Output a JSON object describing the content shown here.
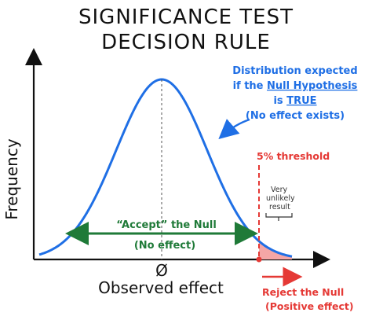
{
  "title": {
    "line1": "SIGNIFICANCE TEST",
    "line2": "DECISION RULE"
  },
  "axes": {
    "y_label": "Frequency",
    "x_label": "Observed effect",
    "x_origin_label": "Ø"
  },
  "callout": {
    "line1": "Distribution expected",
    "line2_prefix": "if the ",
    "line2_emph": "Null Hypothesis",
    "line3_prefix": "is ",
    "line3_emph": "TRUE",
    "line4": "(No effect exists)"
  },
  "accept_region": {
    "label_quote": "“Accept”",
    "label_rest": " the Null",
    "sub": "(No effect)"
  },
  "threshold": {
    "label": "5% threshold"
  },
  "tail_note": {
    "line1": "Very",
    "line2": "unlikely",
    "line3": "result"
  },
  "reject_region": {
    "line1": "Reject the Null",
    "line2": "(Positive effect)"
  },
  "colors": {
    "curve": "#1f6fe5",
    "accept": "#1f7a38",
    "reject": "#e53935",
    "tail_fill": "#f4a6a6",
    "axes": "#111111"
  }
}
